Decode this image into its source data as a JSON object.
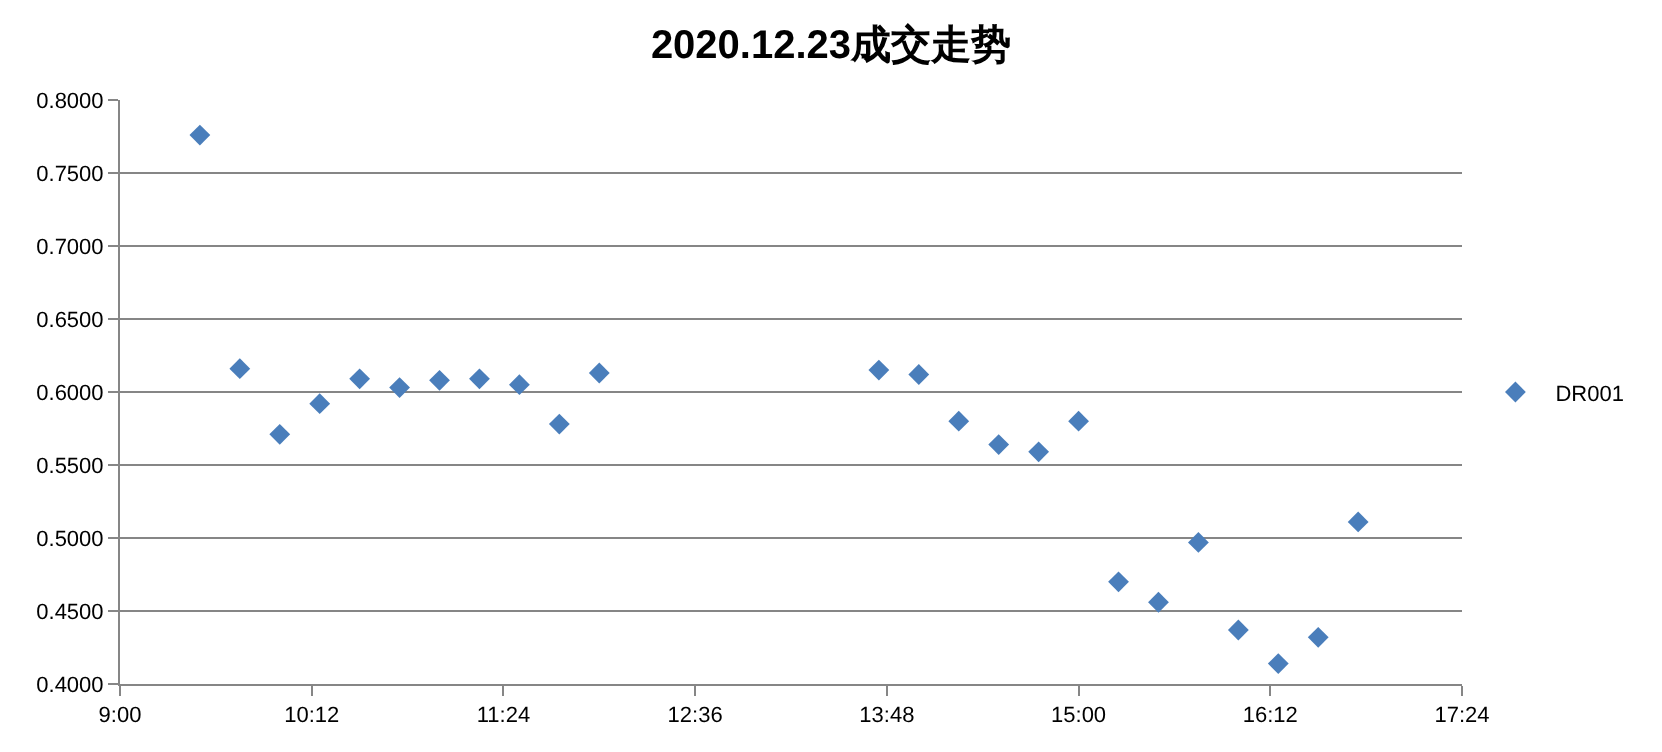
{
  "chart_data": {
    "type": "scatter",
    "title": "2020.12.23成交走势",
    "x": [
      9.5,
      9.75,
      10.0,
      10.25,
      10.5,
      10.75,
      11.0,
      11.25,
      11.5,
      11.75,
      12.0,
      13.75,
      14.0,
      14.25,
      14.5,
      14.75,
      15.0,
      15.25,
      15.5,
      15.75,
      16.0,
      16.25,
      16.5,
      16.75
    ],
    "series": [
      {
        "name": "DR001",
        "color": "#4a7ebb",
        "values": [
          0.776,
          0.616,
          0.571,
          0.592,
          0.609,
          0.603,
          0.608,
          0.609,
          0.605,
          0.578,
          0.613,
          0.615,
          0.612,
          0.58,
          0.564,
          0.559,
          0.58,
          0.47,
          0.456,
          0.497,
          0.437,
          0.414,
          0.432,
          0.511
        ]
      }
    ],
    "xlim": [
      9.0,
      17.4
    ],
    "xticks": [
      {
        "value": 9.0,
        "label": "9:00"
      },
      {
        "value": 10.2,
        "label": "10:12"
      },
      {
        "value": 11.4,
        "label": "11:24"
      },
      {
        "value": 12.6,
        "label": "12:36"
      },
      {
        "value": 13.8,
        "label": "13:48"
      },
      {
        "value": 15.0,
        "label": "15:00"
      },
      {
        "value": 16.2,
        "label": "16:12"
      },
      {
        "value": 17.4,
        "label": "17:24"
      }
    ],
    "ylim": [
      0.4,
      0.8
    ],
    "yticks": [
      {
        "value": 0.4,
        "label": "0.4000"
      },
      {
        "value": 0.45,
        "label": "0.4500"
      },
      {
        "value": 0.5,
        "label": "0.5000"
      },
      {
        "value": 0.55,
        "label": "0.5500"
      },
      {
        "value": 0.6,
        "label": "0.6000"
      },
      {
        "value": 0.65,
        "label": "0.6500"
      },
      {
        "value": 0.7,
        "label": "0.7000"
      },
      {
        "value": 0.75,
        "label": "0.7500"
      },
      {
        "value": 0.8,
        "label": "0.8000"
      }
    ],
    "grid": "y",
    "legend": "right",
    "marker": "diamond"
  }
}
